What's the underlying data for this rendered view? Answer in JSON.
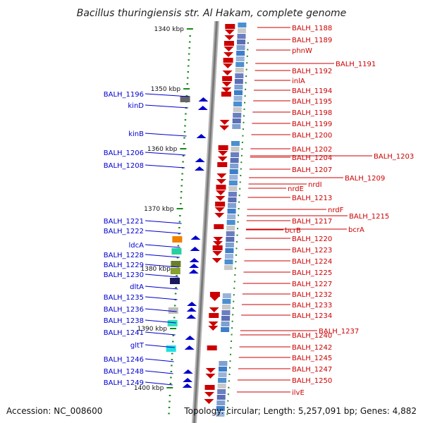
{
  "title": "Bacillus thuringiensis str. Al Hakam, complete genome",
  "footer": {
    "accession": "Accession: NC_008600",
    "summary": "Topology: circular; Length: 5,257,091 bp; Genes: 4,882"
  },
  "ruler_ticks": [
    "1340 kbp",
    "1350 kbp",
    "1360 kbp",
    "1370 kbp",
    "1380 kbp",
    "1390 kbp",
    "1400 kbp"
  ],
  "left_labels": [
    "BALH_1196",
    "kinD",
    "kinB",
    "BALH_1206",
    "BALH_1208",
    "BALH_1221",
    "BALH_1222",
    "ldcA",
    "BALH_1228",
    "BALH_1229",
    "BALH_1230",
    "dltA",
    "BALH_1235",
    "BALH_1236",
    "BALH_1238",
    "BALH_1241",
    "gltT",
    "BALH_1246",
    "BALH_1248",
    "BALH_1249"
  ],
  "right_labels": [
    "BALH_1188",
    "BALH_1189",
    "phnW",
    "BALH_1191",
    "BALH_1192",
    "inlA",
    "BALH_1194",
    "BALH_1195",
    "BALH_1198",
    "BALH_1199",
    "BALH_1200",
    "BALH_1202",
    "BALH_1204",
    "BALH_1203",
    "BALH_1207",
    "BALH_1209",
    "nrdI",
    "nrdE",
    "BALH_1213",
    "nrdF",
    "BALH_1215",
    "BALH_1217",
    "bcrA",
    "bcrB",
    "BALH_1220",
    "BALH_1223",
    "BALH_1224",
    "BALH_1225",
    "BALH_1227",
    "BALH_1232",
    "BALH_1233",
    "BALH_1234",
    "BALH_1237",
    "BALH_1240",
    "BALH_1242",
    "BALH_1245",
    "BALH_1247",
    "BALH_1250",
    "ilvE"
  ],
  "colors": {
    "forward_strand": "#cc0000",
    "reverse_strand": "#0000cc",
    "backbone": "#888888",
    "tick": "#1a8a1a"
  }
}
